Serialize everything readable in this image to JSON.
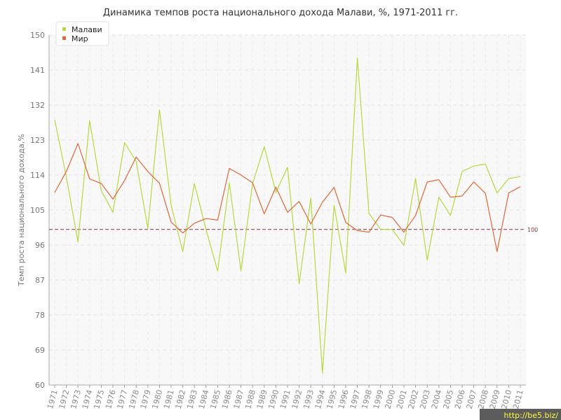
{
  "chart_data": {
    "type": "line",
    "title": "Динамика темпов роста национального дохода Малави, %, 1971-2011 гг.",
    "xlabel": "",
    "ylabel": "Темп роста национального дохода,%",
    "ylim": [
      60,
      150
    ],
    "yticks": [
      60,
      69,
      78,
      87,
      96,
      105,
      114,
      123,
      132,
      141,
      150
    ],
    "x": [
      "1971",
      "1972",
      "1973",
      "1974",
      "1975",
      "1976",
      "1977",
      "1978",
      "1979",
      "1980",
      "1981",
      "1982",
      "1983",
      "1984",
      "1985",
      "1986",
      "1987",
      "1988",
      "1989",
      "1990",
      "1991",
      "1992",
      "1993",
      "1994",
      "1995",
      "1996",
      "1997",
      "1998",
      "1999",
      "2000",
      "2001",
      "2002",
      "2003",
      "2004",
      "2005",
      "2006",
      "2007",
      "2008",
      "2009",
      "2010",
      "2011"
    ],
    "series": [
      {
        "name": "Малави",
        "color": "#b5d93f",
        "values": [
          128.2,
          113.5,
          96.8,
          128.0,
          110.0,
          104.4,
          122.3,
          117.5,
          100.3,
          130.8,
          106.3,
          94.3,
          111.8,
          100.0,
          89.3,
          112.0,
          89.3,
          111.8,
          121.3,
          109.5,
          116.0,
          86.0,
          108.1,
          63.0,
          106.2,
          88.8,
          144.1,
          104.1,
          100.0,
          100.0,
          95.9,
          113.1,
          92.1,
          108.3,
          103.6,
          114.9,
          116.3,
          116.8,
          109.4,
          113.1,
          113.6
        ]
      },
      {
        "name": "Мир",
        "color": "#e06638",
        "values": [
          109.5,
          114.9,
          122.1,
          113.0,
          111.8,
          107.8,
          112.6,
          118.6,
          114.9,
          111.9,
          101.9,
          99.1,
          101.6,
          102.8,
          102.4,
          115.7,
          114.0,
          112.0,
          104.0,
          110.9,
          104.4,
          107.2,
          101.4,
          107.0,
          110.8,
          101.8,
          99.7,
          99.3,
          103.7,
          103.1,
          99.3,
          103.6,
          112.2,
          112.8,
          108.3,
          108.6,
          112.2,
          109.3,
          94.3,
          109.4,
          111.0
        ]
      }
    ],
    "reference_line": {
      "value": 100,
      "label": "100",
      "color": "#8b3040"
    },
    "legend": {
      "position": "top-left",
      "entries": [
        "Малави",
        "Мир"
      ]
    },
    "grid": true
  },
  "watermark": "http://be5.biz/"
}
